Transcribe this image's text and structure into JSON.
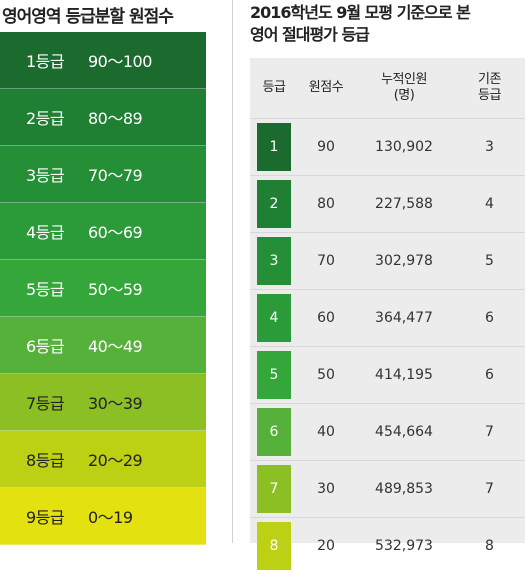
{
  "left": {
    "title": "영어영역 등급분할 원점수",
    "bands": [
      {
        "grade": "1등급",
        "range": "90～100",
        "color": "#1b6b2f",
        "text": "#ffffff"
      },
      {
        "grade": "2등급",
        "range": "80～89",
        "color": "#1f7f33",
        "text": "#ffffff"
      },
      {
        "grade": "3등급",
        "range": "70～79",
        "color": "#248f36",
        "text": "#ffffff"
      },
      {
        "grade": "4등급",
        "range": "60～69",
        "color": "#2b9a38",
        "text": "#ffffff"
      },
      {
        "grade": "5등급",
        "range": "50～59",
        "color": "#35a63a",
        "text": "#ffffff"
      },
      {
        "grade": "6등급",
        "range": "40～49",
        "color": "#55b13a",
        "text": "#ffffff"
      },
      {
        "grade": "7등급",
        "range": "30～39",
        "color": "#8cbf24",
        "text": "#222222"
      },
      {
        "grade": "8등급",
        "range": "20～29",
        "color": "#bcd114",
        "text": "#222222"
      },
      {
        "grade": "9등급",
        "range": "0～19",
        "color": "#e3e110",
        "text": "#222222"
      }
    ]
  },
  "right": {
    "title_line1": "2016학년도 9월 모평 기준으로 본",
    "title_line2": "영어 절대평가 등급",
    "headers": {
      "grade": "등급",
      "raw": "원점수",
      "cum": "누적인원\n(명)",
      "base": "기존\n등급"
    },
    "rows": [
      {
        "grade": "1",
        "raw": "90",
        "cum": "130,902",
        "base": "3",
        "color": "#1b6b2f"
      },
      {
        "grade": "2",
        "raw": "80",
        "cum": "227,588",
        "base": "4",
        "color": "#1f7f33"
      },
      {
        "grade": "3",
        "raw": "70",
        "cum": "302,978",
        "base": "5",
        "color": "#248f36"
      },
      {
        "grade": "4",
        "raw": "60",
        "cum": "364,477",
        "base": "6",
        "color": "#2b9a38"
      },
      {
        "grade": "5",
        "raw": "50",
        "cum": "414,195",
        "base": "6",
        "color": "#35a63a"
      },
      {
        "grade": "6",
        "raw": "40",
        "cum": "454,664",
        "base": "7",
        "color": "#55b13a"
      },
      {
        "grade": "7",
        "raw": "30",
        "cum": "489,853",
        "base": "7",
        "color": "#8cbf24"
      },
      {
        "grade": "8",
        "raw": "20",
        "cum": "532,973",
        "base": "8",
        "color": "#bcd114"
      }
    ]
  }
}
